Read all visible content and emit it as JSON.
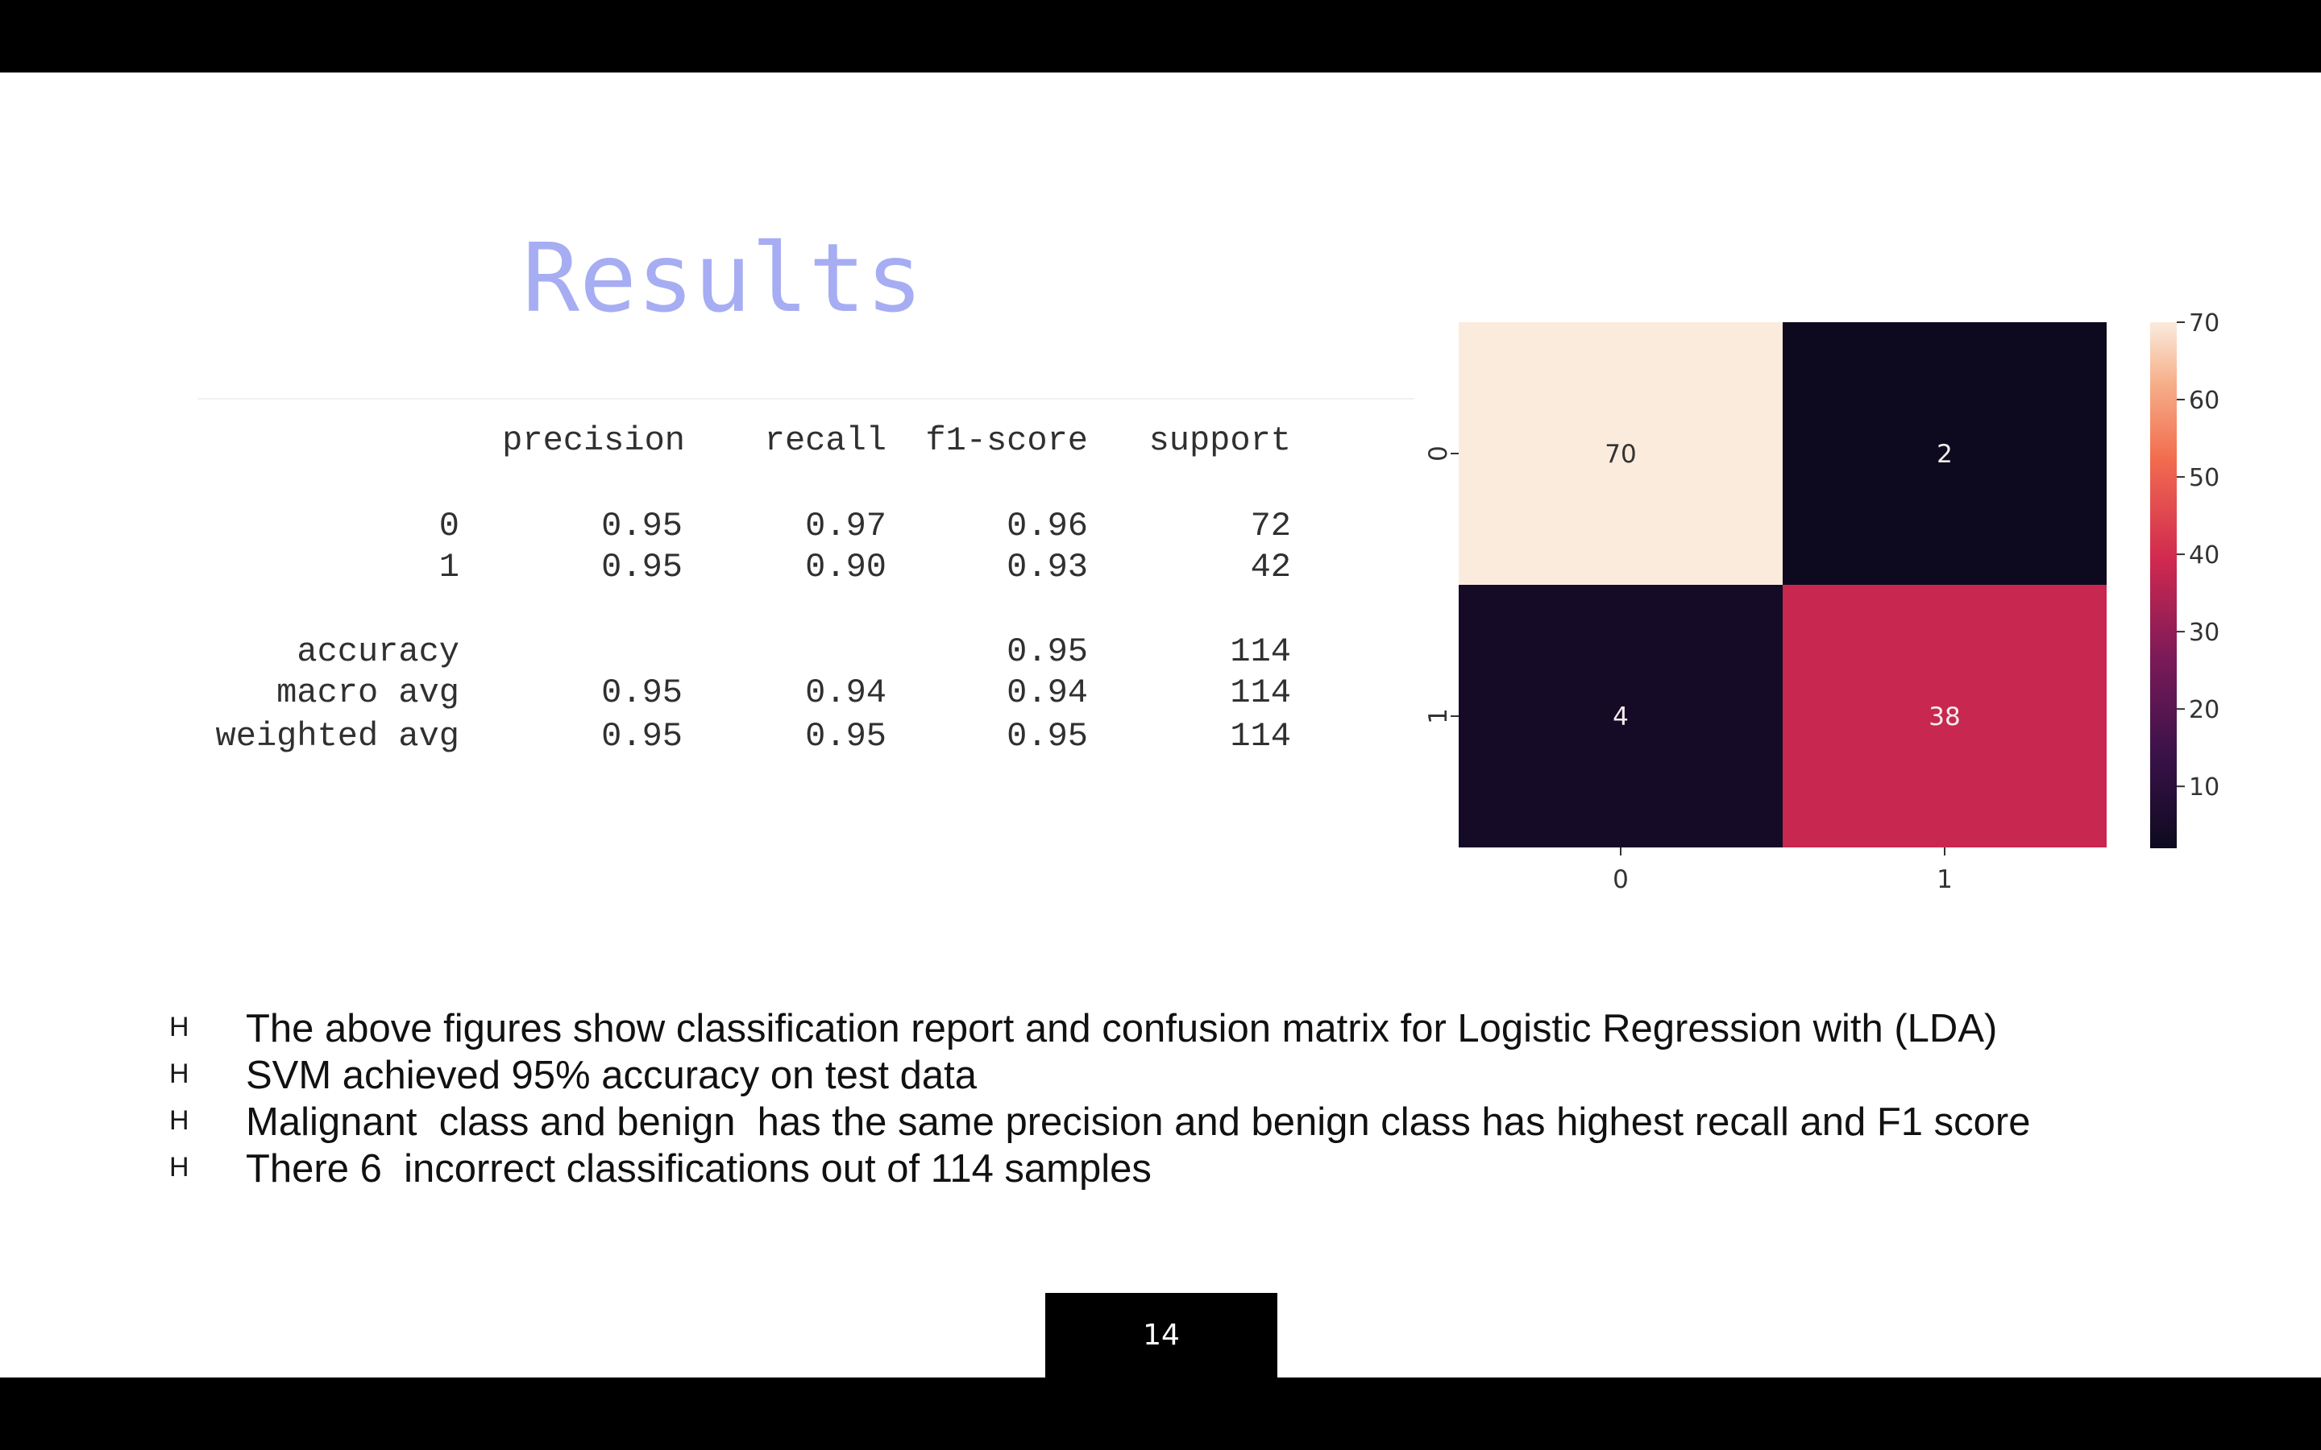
{
  "slide": {
    "title": "Results",
    "page_number": "14"
  },
  "report": {
    "headers": [
      "precision",
      "recall",
      "f1-score",
      "support"
    ],
    "rows": [
      {
        "label": "0",
        "precision": "0.95",
        "recall": "0.97",
        "f1": "0.96",
        "support": "72"
      },
      {
        "label": "1",
        "precision": "0.95",
        "recall": "0.90",
        "f1": "0.93",
        "support": "42"
      },
      {
        "label": "accuracy",
        "precision": "",
        "recall": "",
        "f1": "0.95",
        "support": "114"
      },
      {
        "label": "macro avg",
        "precision": "0.95",
        "recall": "0.94",
        "f1": "0.94",
        "support": "114"
      },
      {
        "label": "weighted avg",
        "precision": "0.95",
        "recall": "0.95",
        "f1": "0.95",
        "support": "114"
      }
    ]
  },
  "chart_data": {
    "type": "heatmap",
    "x_categories": [
      "0",
      "1"
    ],
    "y_categories": [
      "0",
      "1"
    ],
    "values": [
      [
        70,
        2
      ],
      [
        4,
        38
      ]
    ],
    "colorbar": {
      "ticks": [
        10,
        20,
        30,
        40,
        50,
        60,
        70
      ],
      "min": 2,
      "max": 70
    },
    "colors": {
      "low": "#0d0a1f",
      "mid": "#d1294f",
      "high": "#faebdd"
    }
  },
  "bullets": {
    "marker": "H",
    "items": [
      "The above figures show classification report and confusion matrix for Logistic Regression with (LDA)",
      "SVM achieved 95% accuracy on test data",
      "Malignant  class and benign  has the same precision and benign class has highest recall and F1 score",
      "There 6  incorrect classifications out of 114 samples"
    ]
  }
}
